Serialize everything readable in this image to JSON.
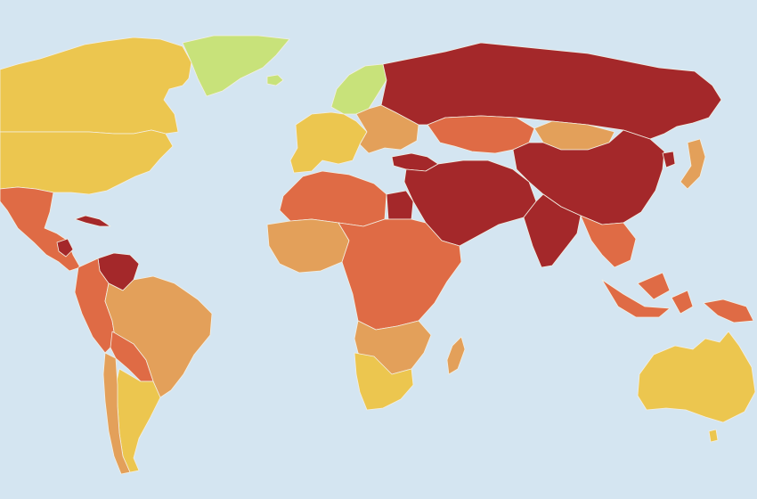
{
  "map": {
    "projection": "world-robinson-like",
    "colors": {
      "ocean": "#d4e5f1",
      "border": "#f3efe3",
      "good": "#c8e27a",
      "satisfactory": "#ecc64f",
      "problematic": "#e3a05a",
      "difficult": "#df6b45",
      "very_serious": "#a4282a"
    },
    "regions": [
      {
        "id": "canada",
        "category": "satisfactory"
      },
      {
        "id": "usa",
        "category": "satisfactory"
      },
      {
        "id": "greenland",
        "category": "good"
      },
      {
        "id": "iceland",
        "category": "good"
      },
      {
        "id": "mexico-central-america",
        "category": "difficult"
      },
      {
        "id": "cuba",
        "category": "very_serious"
      },
      {
        "id": "nicaragua",
        "category": "very_serious"
      },
      {
        "id": "venezuela",
        "category": "very_serious"
      },
      {
        "id": "colombia-peru",
        "category": "difficult"
      },
      {
        "id": "brazil",
        "category": "problematic"
      },
      {
        "id": "bolivia-paraguay",
        "category": "difficult"
      },
      {
        "id": "argentina",
        "category": "satisfactory"
      },
      {
        "id": "chile",
        "category": "problematic"
      },
      {
        "id": "scandinavia",
        "category": "good"
      },
      {
        "id": "western-europe",
        "category": "satisfactory"
      },
      {
        "id": "eastern-europe",
        "category": "problematic"
      },
      {
        "id": "turkey",
        "category": "very_serious"
      },
      {
        "id": "russia",
        "category": "very_serious"
      },
      {
        "id": "kazakhstan",
        "category": "difficult"
      },
      {
        "id": "mongolia",
        "category": "problematic"
      },
      {
        "id": "china",
        "category": "very_serious"
      },
      {
        "id": "korea-north",
        "category": "very_serious"
      },
      {
        "id": "japan",
        "category": "problematic"
      },
      {
        "id": "middle-east",
        "category": "very_serious"
      },
      {
        "id": "india",
        "category": "very_serious"
      },
      {
        "id": "southeast-asia",
        "category": "difficult"
      },
      {
        "id": "indonesia",
        "category": "difficult"
      },
      {
        "id": "north-africa",
        "category": "difficult"
      },
      {
        "id": "egypt",
        "category": "very_serious"
      },
      {
        "id": "west-africa",
        "category": "problematic"
      },
      {
        "id": "central-east-africa",
        "category": "difficult"
      },
      {
        "id": "southern-africa",
        "category": "problematic"
      },
      {
        "id": "namibia-south-africa",
        "category": "satisfactory"
      },
      {
        "id": "madagascar",
        "category": "problematic"
      },
      {
        "id": "australia",
        "category": "satisfactory"
      },
      {
        "id": "new-zealand",
        "category": "satisfactory"
      },
      {
        "id": "papua-new-guinea",
        "category": "difficult"
      }
    ]
  }
}
